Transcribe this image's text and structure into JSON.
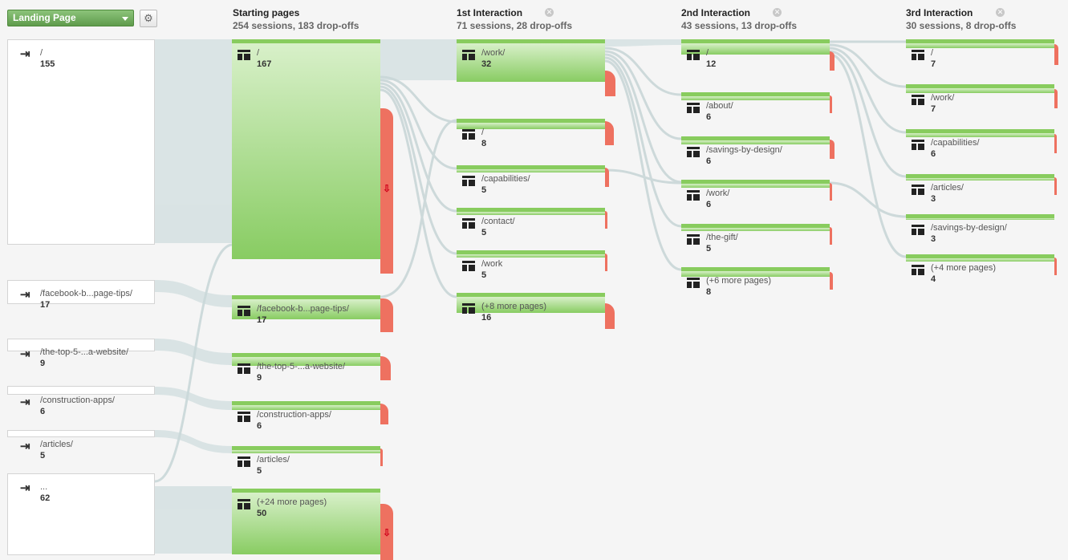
{
  "toolbar": {
    "dimension_label": "Landing Page",
    "settings_icon": "gear-icon"
  },
  "columns": [
    {
      "title": "Starting pages",
      "summary": "254 sessions, 183 drop-offs",
      "closable": false
    },
    {
      "title": "1st Interaction",
      "summary": "71 sessions, 28 drop-offs",
      "closable": true
    },
    {
      "title": "2nd Interaction",
      "summary": "43 sessions, 13 drop-offs",
      "closable": true
    },
    {
      "title": "3rd Interaction",
      "summary": "30 sessions, 8 drop-offs",
      "closable": true
    }
  ],
  "sources": [
    {
      "label": "/",
      "count": "155"
    },
    {
      "label": "/facebook-b...page-tips/",
      "count": "17"
    },
    {
      "label": "/the-top-5-...a-website/",
      "count": "9"
    },
    {
      "label": "/construction-apps/",
      "count": "6"
    },
    {
      "label": "/articles/",
      "count": "5"
    },
    {
      "label": "...",
      "count": "62"
    }
  ],
  "starting_pages": [
    {
      "label": "/",
      "count": "167"
    },
    {
      "label": "/facebook-b...page-tips/",
      "count": "17"
    },
    {
      "label": "/the-top-5-...a-website/",
      "count": "9"
    },
    {
      "label": "/construction-apps/",
      "count": "6"
    },
    {
      "label": "/articles/",
      "count": "5"
    },
    {
      "label": "(+24 more pages)",
      "count": "50"
    }
  ],
  "interaction_1": [
    {
      "label": "/work/",
      "count": "32"
    },
    {
      "label": "/",
      "count": "8"
    },
    {
      "label": "/capabilities/",
      "count": "5"
    },
    {
      "label": "/contact/",
      "count": "5"
    },
    {
      "label": "/work",
      "count": "5"
    },
    {
      "label": "(+8 more pages)",
      "count": "16"
    }
  ],
  "interaction_2": [
    {
      "label": "/",
      "count": "12"
    },
    {
      "label": "/about/",
      "count": "6"
    },
    {
      "label": "/savings-by-design/",
      "count": "6"
    },
    {
      "label": "/work/",
      "count": "6"
    },
    {
      "label": "/the-gift/",
      "count": "5"
    },
    {
      "label": "(+6 more pages)",
      "count": "8"
    }
  ],
  "interaction_3": [
    {
      "label": "/",
      "count": "7"
    },
    {
      "label": "/work/",
      "count": "7"
    },
    {
      "label": "/capabilities/",
      "count": "6"
    },
    {
      "label": "/articles/",
      "count": "3"
    },
    {
      "label": "/savings-by-design/",
      "count": "3"
    },
    {
      "label": "(+4 more pages)",
      "count": "4"
    }
  ],
  "colors": {
    "node_green": "#88cc62",
    "dropoff_red": "#ee7160",
    "flow_gray": "#d3dfe0"
  }
}
